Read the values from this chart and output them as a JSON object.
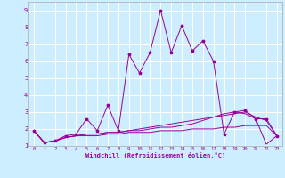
{
  "xlabel": "Windchill (Refroidissement éolien,°C)",
  "background_color": "#cceeff",
  "grid_color": "#ffffff",
  "line_color": "#990099",
  "xlim": [
    -0.5,
    23.5
  ],
  "ylim": [
    1,
    9.5
  ],
  "xticks": [
    0,
    1,
    2,
    3,
    4,
    5,
    6,
    7,
    8,
    9,
    10,
    11,
    12,
    13,
    14,
    15,
    16,
    17,
    18,
    19,
    20,
    21,
    22,
    23
  ],
  "yticks": [
    1,
    2,
    3,
    4,
    5,
    6,
    7,
    8,
    9
  ],
  "series1_x": [
    0,
    1,
    2,
    3,
    4,
    5,
    6,
    7,
    8,
    9,
    10,
    11,
    12,
    13,
    14,
    15,
    16,
    17,
    18,
    19,
    20,
    21,
    22,
    23
  ],
  "series1_y": [
    1.9,
    1.2,
    1.3,
    1.6,
    1.7,
    2.6,
    1.9,
    3.4,
    1.9,
    6.4,
    5.3,
    6.5,
    9.0,
    6.5,
    8.1,
    6.6,
    7.2,
    6.0,
    1.7,
    3.0,
    3.1,
    2.6,
    2.6,
    1.6
  ],
  "series2_x": [
    0,
    1,
    2,
    3,
    4,
    5,
    6,
    7,
    8,
    9,
    10,
    11,
    12,
    13,
    14,
    15,
    16,
    17,
    18,
    19,
    20,
    21,
    22,
    23
  ],
  "series2_y": [
    1.9,
    1.2,
    1.3,
    1.5,
    1.6,
    1.6,
    1.6,
    1.7,
    1.7,
    1.8,
    1.8,
    1.8,
    1.9,
    1.9,
    1.9,
    2.0,
    2.0,
    2.0,
    2.1,
    2.1,
    2.2,
    2.2,
    2.2,
    1.6
  ],
  "series3_x": [
    0,
    1,
    2,
    3,
    4,
    5,
    6,
    7,
    8,
    9,
    10,
    11,
    12,
    13,
    14,
    15,
    16,
    17,
    18,
    19,
    20,
    21,
    22,
    23
  ],
  "series3_y": [
    1.9,
    1.2,
    1.3,
    1.5,
    1.6,
    1.7,
    1.7,
    1.8,
    1.8,
    1.9,
    1.9,
    2.0,
    2.1,
    2.1,
    2.2,
    2.3,
    2.5,
    2.7,
    2.9,
    3.0,
    2.9,
    2.6,
    1.1,
    1.6
  ],
  "series4_x": [
    0,
    1,
    2,
    3,
    4,
    5,
    6,
    7,
    8,
    9,
    10,
    11,
    12,
    13,
    14,
    15,
    16,
    17,
    18,
    19,
    20,
    21,
    22,
    23
  ],
  "series4_y": [
    1.9,
    1.2,
    1.3,
    1.5,
    1.6,
    1.7,
    1.7,
    1.8,
    1.8,
    1.9,
    2.0,
    2.1,
    2.2,
    2.3,
    2.4,
    2.5,
    2.6,
    2.7,
    2.8,
    2.9,
    3.0,
    2.7,
    2.5,
    1.6
  ]
}
